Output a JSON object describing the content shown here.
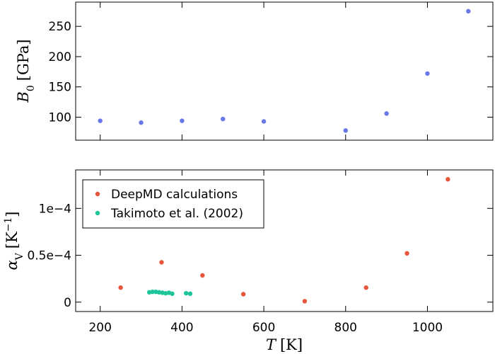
{
  "chart_data": [
    {
      "type": "scatter",
      "ylabel": "B0 [GPa]",
      "ylabel_main": "B",
      "ylabel_sub": "0",
      "ylabel_unit": "[GPa]",
      "xlim": [
        140,
        1160
      ],
      "ylim": [
        62,
        290
      ],
      "yticks": [
        100,
        150,
        200,
        250
      ],
      "ytick_labels": [
        "100",
        "150",
        "200",
        "250"
      ],
      "xticks": [
        200,
        400,
        600,
        800,
        1000
      ],
      "series": [
        {
          "color": "#6878e8",
          "x": [
            200,
            300,
            400,
            500,
            600,
            800,
            900,
            1000,
            1100
          ],
          "y": [
            94,
            91,
            94,
            97,
            93,
            78,
            106,
            172,
            275
          ]
        }
      ]
    },
    {
      "type": "scatter",
      "xlabel": "T [K]",
      "xlabel_main": "T",
      "xlabel_unit": "[K]",
      "ylabel": "αV [K−1]",
      "ylabel_main": "α",
      "ylabel_sub": "V",
      "ylabel_unit_base": "[K",
      "ylabel_unit_sup": "−1",
      "ylabel_unit_close": "]",
      "xlim": [
        140,
        1160
      ],
      "ylim": [
        -1e-05,
        0.000141
      ],
      "yticks": [
        0,
        5e-05,
        0.0001
      ],
      "ytick_labels": [
        "0",
        "0.5e−4",
        "1e−4"
      ],
      "xticks": [
        200,
        400,
        600,
        800,
        1000
      ],
      "xtick_labels": [
        "200",
        "400",
        "600",
        "800",
        "1000"
      ],
      "legend_position": "top-left",
      "series": [
        {
          "name": "DeepMD calculations",
          "color": "#e8543c",
          "x": [
            250,
            350,
            450,
            550,
            700,
            850,
            950,
            1050
          ],
          "y": [
            1.55e-05,
            4.25e-05,
            2.85e-05,
            8.5e-06,
            1e-06,
            1.55e-05,
            5.2e-05,
            0.000131
          ]
        },
        {
          "name": "Takimoto et al. (2002)",
          "color": "#1ec49a",
          "x": [
            320,
            328,
            336,
            344,
            352,
            360,
            368,
            376,
            410,
            420
          ],
          "y": [
            1.05e-05,
            1.1e-05,
            1.1e-05,
            1.05e-05,
            1e-05,
            9.5e-06,
            1e-05,
            9e-06,
            9.5e-06,
            9e-06
          ]
        }
      ]
    }
  ]
}
